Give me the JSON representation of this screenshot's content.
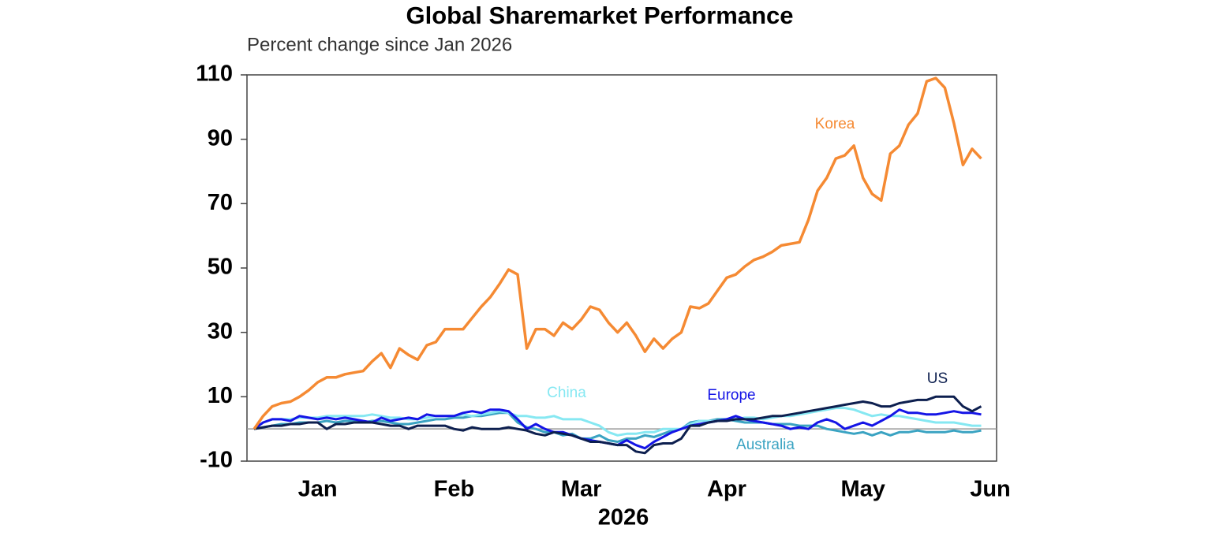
{
  "chart_data": {
    "type": "line",
    "title": "Global Sharemarket Performance",
    "subtitle": "Percent change since Jan 2026",
    "xlabel": "2026",
    "categories": [
      null,
      null,
      null,
      null,
      null,
      null,
      null,
      "Jan",
      null,
      null,
      null,
      null,
      null,
      null,
      null,
      null,
      null,
      null,
      null,
      null,
      null,
      null,
      "Feb",
      null,
      null,
      null,
      null,
      null,
      null,
      null,
      null,
      null,
      null,
      null,
      null,
      null,
      "Mar",
      null,
      null,
      null,
      null,
      null,
      null,
      null,
      null,
      null,
      null,
      null,
      null,
      null,
      null,
      null,
      "Apr",
      null,
      null,
      null,
      null,
      null,
      null,
      null,
      null,
      null,
      null,
      null,
      null,
      null,
      null,
      "May",
      null,
      null,
      null,
      null,
      null,
      null,
      null,
      null,
      null,
      null,
      null,
      null,
      null,
      "Jun"
    ],
    "series": [
      {
        "name": "Korea",
        "color": "#f58a33",
        "values": [
          0,
          4,
          7,
          8,
          8.5,
          10,
          12,
          14.5,
          16,
          16,
          17,
          17.5,
          18,
          21,
          23.5,
          19,
          25,
          23,
          21.5,
          26,
          27,
          31,
          31,
          31,
          34.5,
          38,
          41,
          45,
          49.5,
          48,
          25,
          31,
          31,
          29,
          33,
          31,
          34,
          38,
          37,
          33,
          30,
          33,
          29,
          24,
          28,
          25,
          28,
          30,
          38,
          37.5,
          39,
          43,
          47,
          48,
          50.5,
          52.5,
          53.5,
          55,
          57,
          57.5,
          58,
          65,
          74,
          78,
          84,
          85,
          88,
          78,
          73,
          71,
          85.5,
          88,
          94.5,
          98,
          108,
          109,
          106,
          95,
          82,
          87,
          84,
          null
        ]
      },
      {
        "name": "US",
        "color": "#0d1f4f",
        "values": [
          0,
          0.5,
          1,
          1,
          1.5,
          1.5,
          2,
          2,
          0,
          1.5,
          1.5,
          2,
          2,
          2,
          1.5,
          1,
          1,
          0,
          1,
          1,
          1,
          1,
          0,
          -0.5,
          0.5,
          0,
          0,
          0,
          0.5,
          0,
          -0.5,
          -1.5,
          -2,
          -1,
          -1.5,
          -2,
          -3,
          -4,
          -4,
          -4.5,
          -5,
          -5,
          -7,
          -7.5,
          -5,
          -4.5,
          -4.5,
          -3,
          1,
          1,
          2,
          2.5,
          2.5,
          3,
          3,
          3,
          3.5,
          4,
          4,
          4.5,
          5,
          5.5,
          6,
          6.5,
          7,
          7.5,
          8,
          8.5,
          8,
          7,
          7,
          8,
          8.5,
          9,
          9,
          10,
          10,
          10,
          7,
          5.5,
          7,
          null
        ]
      },
      {
        "name": "Europe",
        "color": "#1414e6",
        "values": [
          0,
          2,
          3,
          3,
          2.5,
          4,
          3.5,
          3,
          3.5,
          3,
          3.5,
          3,
          2.5,
          2,
          3.5,
          2.5,
          3,
          3.5,
          3,
          4.5,
          4,
          4,
          4,
          5,
          5.5,
          5,
          6,
          6,
          5.5,
          3,
          0,
          1.5,
          0,
          -1,
          -1,
          -2,
          -3,
          -3.5,
          -4,
          -4.5,
          -5,
          -3.5,
          -5,
          -6,
          -4,
          -2.5,
          -1,
          0,
          1,
          1.5,
          2,
          2.5,
          3,
          4,
          3,
          2.5,
          2,
          1.5,
          1,
          0,
          0.5,
          0,
          2,
          3,
          2,
          0,
          1,
          2,
          1,
          2.5,
          4,
          6,
          5,
          5,
          4.5,
          4.5,
          5,
          5.5,
          5,
          5,
          4.5,
          null
        ]
      },
      {
        "name": "China",
        "color": "#86e8f2",
        "values": [
          0,
          2,
          3,
          3,
          3,
          3.5,
          3.5,
          3.5,
          4,
          4,
          4,
          4,
          4,
          4.5,
          4,
          3.5,
          3.5,
          3,
          3,
          3.5,
          4,
          4,
          4,
          4.5,
          4,
          4.5,
          5,
          5.5,
          5,
          4,
          4,
          3.5,
          3.5,
          4,
          3,
          3,
          3,
          2,
          1,
          -1,
          -2,
          -1.5,
          -1.5,
          -1,
          -1,
          0,
          0,
          0,
          1.5,
          2.5,
          2.5,
          2.5,
          3,
          3,
          3.5,
          3.5,
          3,
          3.5,
          4,
          4,
          4.5,
          5,
          5.5,
          6,
          6.5,
          6.5,
          6,
          5,
          4,
          4.5,
          4,
          4,
          3.5,
          3,
          2.5,
          2,
          2,
          2,
          1.5,
          1,
          1,
          null
        ]
      },
      {
        "name": "Australia",
        "color": "#3aa3c2",
        "values": [
          0,
          0.5,
          1,
          1.5,
          1.5,
          2,
          2,
          2,
          2.5,
          2,
          2.5,
          2.5,
          2,
          2.5,
          2.5,
          2,
          1.5,
          1.5,
          2,
          2.5,
          3,
          3,
          3.5,
          3.5,
          4,
          4,
          4.5,
          5,
          5,
          2,
          0.5,
          0,
          -1,
          -1,
          -2,
          -1.5,
          -3,
          -3,
          -2,
          -3.5,
          -4,
          -3,
          -3,
          -2,
          -2.5,
          -1.5,
          -0.5,
          0,
          2,
          2.5,
          2.5,
          3,
          3,
          2.5,
          2,
          2,
          2,
          1.5,
          1.5,
          1.5,
          1,
          1,
          1,
          0,
          -0.5,
          -1,
          -1.5,
          -1,
          -2,
          -1,
          -2,
          -1,
          -1,
          -0.5,
          -1,
          -1,
          -1,
          -0.5,
          -1,
          -1,
          -0.5,
          null
        ]
      }
    ],
    "ylim": [
      -10,
      110
    ],
    "yticks": [
      -10,
      10,
      30,
      50,
      70,
      90,
      110
    ],
    "grid": false
  }
}
